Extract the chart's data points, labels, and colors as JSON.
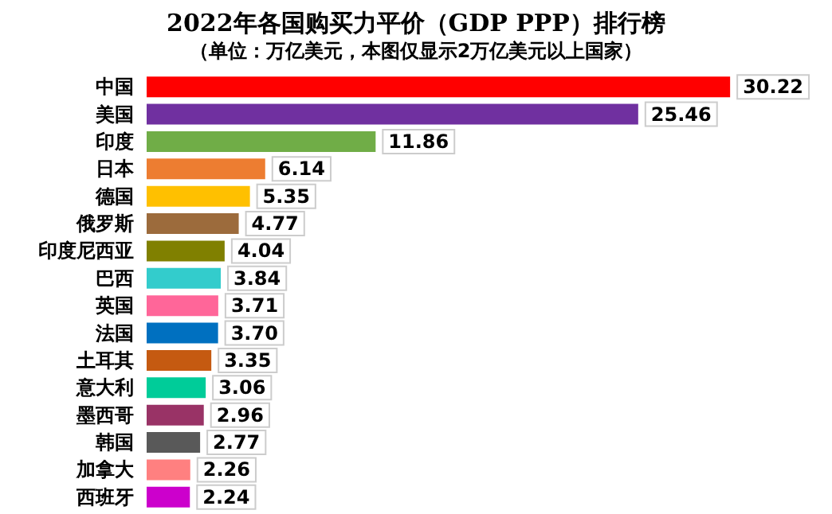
{
  "chart_data": {
    "type": "bar",
    "orientation": "horizontal",
    "title": "2022年各国购买力平价（GDP PPP）排行榜",
    "subtitle": "（单位：万亿美元，本图仅显示2万亿美元以上国家）",
    "categories": [
      "中国",
      "美国",
      "印度",
      "日本",
      "德国",
      "俄罗斯",
      "印度尼西亚",
      "巴西",
      "英国",
      "法国",
      "土耳其",
      "意大利",
      "墨西哥",
      "韩国",
      "加拿大",
      "西班牙"
    ],
    "values": [
      30.22,
      25.46,
      11.86,
      6.14,
      5.35,
      4.77,
      4.04,
      3.84,
      3.71,
      3.7,
      3.35,
      3.06,
      2.96,
      2.77,
      2.26,
      2.24
    ],
    "value_labels": [
      "30.22",
      "25.46",
      "11.86",
      "6.14",
      "5.35",
      "4.77",
      "4.04",
      "3.84",
      "3.71",
      "3.70",
      "3.35",
      "3.06",
      "2.96",
      "2.77",
      "2.26",
      "2.24"
    ],
    "colors": [
      "#ff0000",
      "#7030a0",
      "#70ad47",
      "#ed7d31",
      "#ffc000",
      "#9c6b3c",
      "#808000",
      "#33cccc",
      "#ff6699",
      "#0070c0",
      "#c55a11",
      "#00cc99",
      "#993366",
      "#595959",
      "#ff8080",
      "#cc00cc"
    ]
  }
}
